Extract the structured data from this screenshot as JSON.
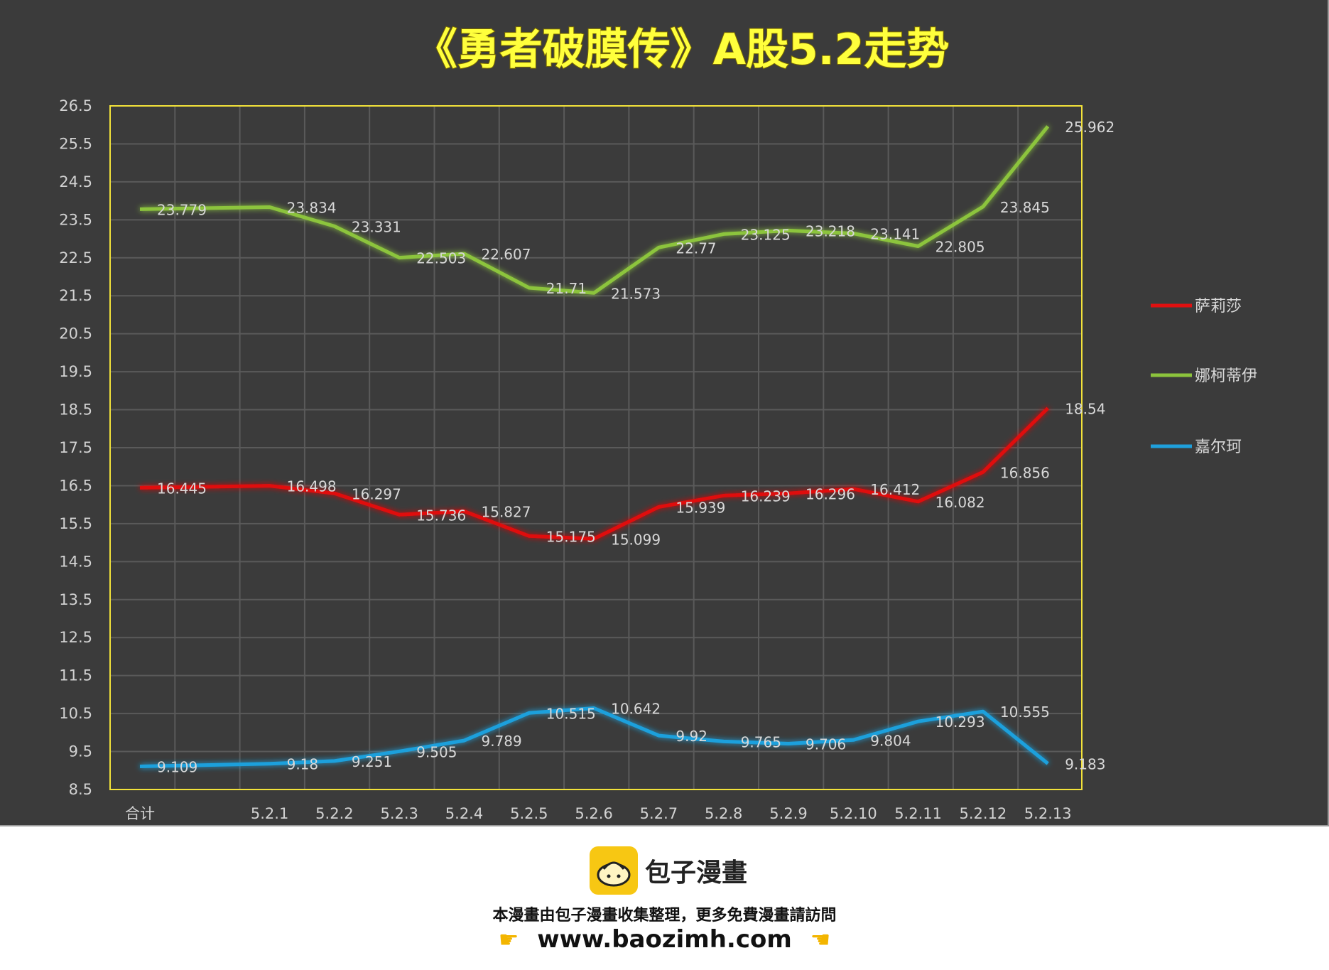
{
  "footer": {
    "brand_name": "包子漫畫",
    "notice": "本漫畫由包子漫畫收集整理，更多免費漫畫請訪問",
    "url": "www.baozimh.com",
    "left_hand_icon": "pointing-right-hand-icon",
    "right_hand_icon": "pointing-left-hand-icon",
    "logo_icon": "bun-mascot-icon"
  },
  "colors": {
    "panel_bg": "#3b3b3b",
    "title": "#ffff3c",
    "plot_border": "#f2e23a",
    "grid": "#5a5a5a",
    "axis_text": "#d2d2d2",
    "label_text": "#d8d8d8"
  },
  "chart_data": {
    "type": "line",
    "title": "《勇者破膜传》A股5.2走势",
    "xlabel": "",
    "ylabel": "",
    "categories": [
      "合计",
      "",
      "5.2.1",
      "5.2.2",
      "5.2.3",
      "5.2.4",
      "5.2.5",
      "5.2.6",
      "5.2.7",
      "5.2.8",
      "5.2.9",
      "5.2.10",
      "5.2.11",
      "5.2.12",
      "5.2.13"
    ],
    "ylim": [
      8.5,
      26.5
    ],
    "yticks": [
      8.5,
      9.5,
      10.5,
      11.5,
      12.5,
      13.5,
      14.5,
      15.5,
      16.5,
      17.5,
      18.5,
      19.5,
      20.5,
      21.5,
      22.5,
      23.5,
      24.5,
      25.5,
      26.5
    ],
    "grid": true,
    "legend_position": "right",
    "series": [
      {
        "name": "萨莉莎",
        "color": "#e01010",
        "values": [
          16.445,
          null,
          16.498,
          16.297,
          15.736,
          15.827,
          15.175,
          15.099,
          15.939,
          16.239,
          16.296,
          16.412,
          16.082,
          16.856,
          18.54
        ],
        "labels": [
          "16.445",
          "",
          "16.498",
          "16.297",
          "15.736",
          "15.827",
          "15.175",
          "15.099",
          "15.939",
          "16.239",
          "16.296",
          "16.412",
          "16.082",
          "16.856",
          "18.54"
        ]
      },
      {
        "name": "娜柯蒂伊",
        "color": "#8cc43c",
        "values": [
          23.779,
          null,
          23.834,
          23.331,
          22.503,
          22.607,
          21.71,
          21.573,
          22.77,
          23.125,
          23.218,
          23.141,
          22.805,
          23.845,
          25.962
        ],
        "labels": [
          "23.779",
          "",
          "23.834",
          "23.331",
          "22.503",
          "22.607",
          "21.71",
          "21.573",
          "22.77",
          "23.125",
          "23.218",
          "23.141",
          "22.805",
          "23.845",
          "25.962"
        ]
      },
      {
        "name": "嘉尔珂",
        "color": "#1fa0dc",
        "values": [
          9.109,
          null,
          9.18,
          9.251,
          9.505,
          9.789,
          10.515,
          10.642,
          9.92,
          9.765,
          9.706,
          9.804,
          10.293,
          10.555,
          9.183
        ],
        "labels": [
          "9.109",
          "",
          "9.18",
          "9.251",
          "9.505",
          "9.789",
          "10.515",
          "10.642",
          "9.92",
          "9.765",
          "9.706",
          "9.804",
          "10.293",
          "10.555",
          "9.183"
        ]
      }
    ]
  }
}
